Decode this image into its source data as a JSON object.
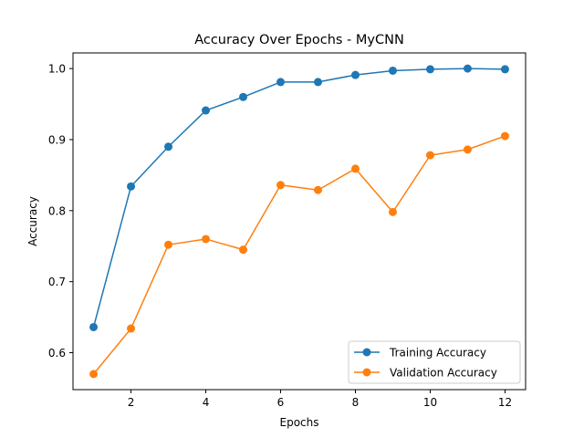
{
  "chart_data": {
    "type": "line",
    "title": "Accuracy Over Epochs - MyCNN",
    "xlabel": "Epochs",
    "ylabel": "Accuracy",
    "x": [
      1,
      2,
      3,
      4,
      5,
      6,
      7,
      8,
      9,
      10,
      11,
      12
    ],
    "xlim": [
      0.45,
      12.55
    ],
    "ylim": [
      0.548,
      1.022
    ],
    "xticks": [
      2,
      4,
      6,
      8,
      10,
      12
    ],
    "yticks": [
      0.6,
      0.7,
      0.8,
      0.9,
      1.0
    ],
    "grid": false,
    "legend_position": "lower-right",
    "series": [
      {
        "name": "Training Accuracy",
        "color": "#1f77b4",
        "marker": "circle",
        "values": [
          0.636,
          0.834,
          0.89,
          0.941,
          0.96,
          0.981,
          0.981,
          0.991,
          0.997,
          0.999,
          1.0,
          0.999
        ]
      },
      {
        "name": "Validation Accuracy",
        "color": "#ff7f0e",
        "marker": "circle",
        "values": [
          0.57,
          0.634,
          0.752,
          0.76,
          0.745,
          0.836,
          0.829,
          0.859,
          0.798,
          0.878,
          0.886,
          0.905
        ]
      }
    ]
  }
}
